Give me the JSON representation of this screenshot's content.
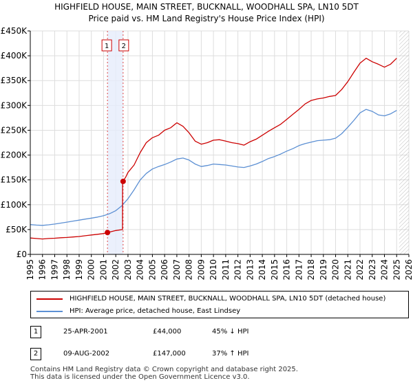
{
  "chart_data": {
    "type": "line",
    "title": "HIGHFIELD HOUSE, MAIN STREET, BUCKNALL, WOODHALL SPA, LN10 5DT",
    "subtitle": "Price paid vs. HM Land Registry's House Price Index (HPI)",
    "xlim": [
      1995,
      2026
    ],
    "ylim": [
      0,
      450000
    ],
    "x_ticks": [
      1995,
      1996,
      1997,
      1998,
      1999,
      2000,
      2001,
      2002,
      2003,
      2004,
      2005,
      2006,
      2007,
      2008,
      2009,
      2010,
      2011,
      2012,
      2013,
      2014,
      2015,
      2016,
      2017,
      2018,
      2019,
      2020,
      2021,
      2022,
      2023,
      2024,
      2025,
      2026
    ],
    "y_ticks": [
      0,
      50000,
      100000,
      150000,
      200000,
      250000,
      300000,
      350000,
      400000,
      450000
    ],
    "y_tick_labels": [
      "£0",
      "£50K",
      "£100K",
      "£150K",
      "£200K",
      "£250K",
      "£300K",
      "£350K",
      "£400K",
      "£450K"
    ],
    "grid": true,
    "series": [
      {
        "name": "HIGHFIELD HOUSE, MAIN STREET, BUCKNALL, WOODHALL SPA, LN10 5DT (detached house)",
        "color": "#cc0000",
        "x": [
          1995.0,
          1995.5,
          1996.0,
          1996.5,
          1997.0,
          1997.5,
          1998.0,
          1998.5,
          1999.0,
          1999.5,
          2000.0,
          2000.5,
          2001.0,
          2001.32,
          2001.5,
          2002.0,
          2002.55,
          2002.56,
          2002.8,
          2003.0,
          2003.5,
          2004.0,
          2004.5,
          2005.0,
          2005.5,
          2006.0,
          2006.5,
          2007.0,
          2007.5,
          2008.0,
          2008.5,
          2009.0,
          2009.5,
          2010.0,
          2010.5,
          2011.0,
          2011.5,
          2012.0,
          2012.5,
          2013.0,
          2013.5,
          2014.0,
          2014.5,
          2015.0,
          2015.5,
          2016.0,
          2016.5,
          2017.0,
          2017.5,
          2018.0,
          2018.5,
          2019.0,
          2019.5,
          2020.0,
          2020.5,
          2021.0,
          2021.5,
          2022.0,
          2022.5,
          2023.0,
          2023.5,
          2024.0,
          2024.5,
          2025.0
        ],
        "y": [
          33000,
          32000,
          31000,
          32000,
          32500,
          33500,
          34000,
          35000,
          36000,
          37500,
          39000,
          40500,
          42000,
          44000,
          45000,
          48000,
          50000,
          147000,
          155000,
          165000,
          180000,
          205000,
          225000,
          235000,
          240000,
          250000,
          255000,
          265000,
          258000,
          245000,
          228000,
          222000,
          225000,
          230000,
          231000,
          228000,
          225000,
          223000,
          220000,
          227000,
          232000,
          240000,
          248000,
          255000,
          262000,
          272000,
          282000,
          292000,
          303000,
          310000,
          313000,
          315000,
          318000,
          320000,
          332000,
          348000,
          367000,
          385000,
          395000,
          388000,
          383000,
          377000,
          383000,
          395000
        ]
      },
      {
        "name": "HPI: Average price, detached house, East Lindsey",
        "color": "#5b8fd3",
        "x": [
          1995.0,
          1995.5,
          1996.0,
          1996.5,
          1997.0,
          1997.5,
          1998.0,
          1998.5,
          1999.0,
          1999.5,
          2000.0,
          2000.5,
          2001.0,
          2001.5,
          2002.0,
          2002.5,
          2003.0,
          2003.5,
          2004.0,
          2004.5,
          2005.0,
          2005.5,
          2006.0,
          2006.5,
          2007.0,
          2007.5,
          2008.0,
          2008.5,
          2009.0,
          2009.5,
          2010.0,
          2010.5,
          2011.0,
          2011.5,
          2012.0,
          2012.5,
          2013.0,
          2013.5,
          2014.0,
          2014.5,
          2015.0,
          2015.5,
          2016.0,
          2016.5,
          2017.0,
          2017.5,
          2018.0,
          2018.5,
          2019.0,
          2019.5,
          2020.0,
          2020.5,
          2021.0,
          2021.5,
          2022.0,
          2022.5,
          2023.0,
          2023.5,
          2024.0,
          2024.5,
          2025.0
        ],
        "y": [
          60000,
          59000,
          58500,
          59500,
          61000,
          63000,
          65000,
          67000,
          69000,
          71000,
          73000,
          75000,
          78000,
          82000,
          88000,
          98000,
          112000,
          130000,
          150000,
          163000,
          172000,
          177000,
          181000,
          186000,
          192000,
          194000,
          190000,
          182000,
          177000,
          179000,
          182000,
          181000,
          180000,
          178000,
          176000,
          175000,
          178000,
          182000,
          187000,
          193000,
          197000,
          202000,
          208000,
          213000,
          219000,
          223000,
          226000,
          229000,
          230000,
          231000,
          234000,
          243000,
          256000,
          270000,
          285000,
          292000,
          288000,
          281000,
          279000,
          283000,
          290000
        ]
      }
    ],
    "markers": [
      {
        "label": "1",
        "x": 2001.32,
        "y": 44000
      },
      {
        "label": "2",
        "x": 2002.6,
        "y": 147000
      }
    ]
  },
  "legend": {
    "property_label": "HIGHFIELD HOUSE, MAIN STREET, BUCKNALL, WOODHALL SPA, LN10 5DT (detached house)",
    "hpi_label": "HPI: Average price, detached house, East Lindsey"
  },
  "transactions": [
    {
      "num": "1",
      "date": "25-APR-2001",
      "price": "£44,000",
      "hpi": "45% ↓ HPI"
    },
    {
      "num": "2",
      "date": "09-AUG-2002",
      "price": "£147,000",
      "hpi": "37% ↑ HPI"
    }
  ],
  "footer": {
    "line1": "Contains HM Land Registry data © Crown copyright and database right 2025.",
    "line2": "This data is licensed under the Open Government Licence v3.0."
  }
}
